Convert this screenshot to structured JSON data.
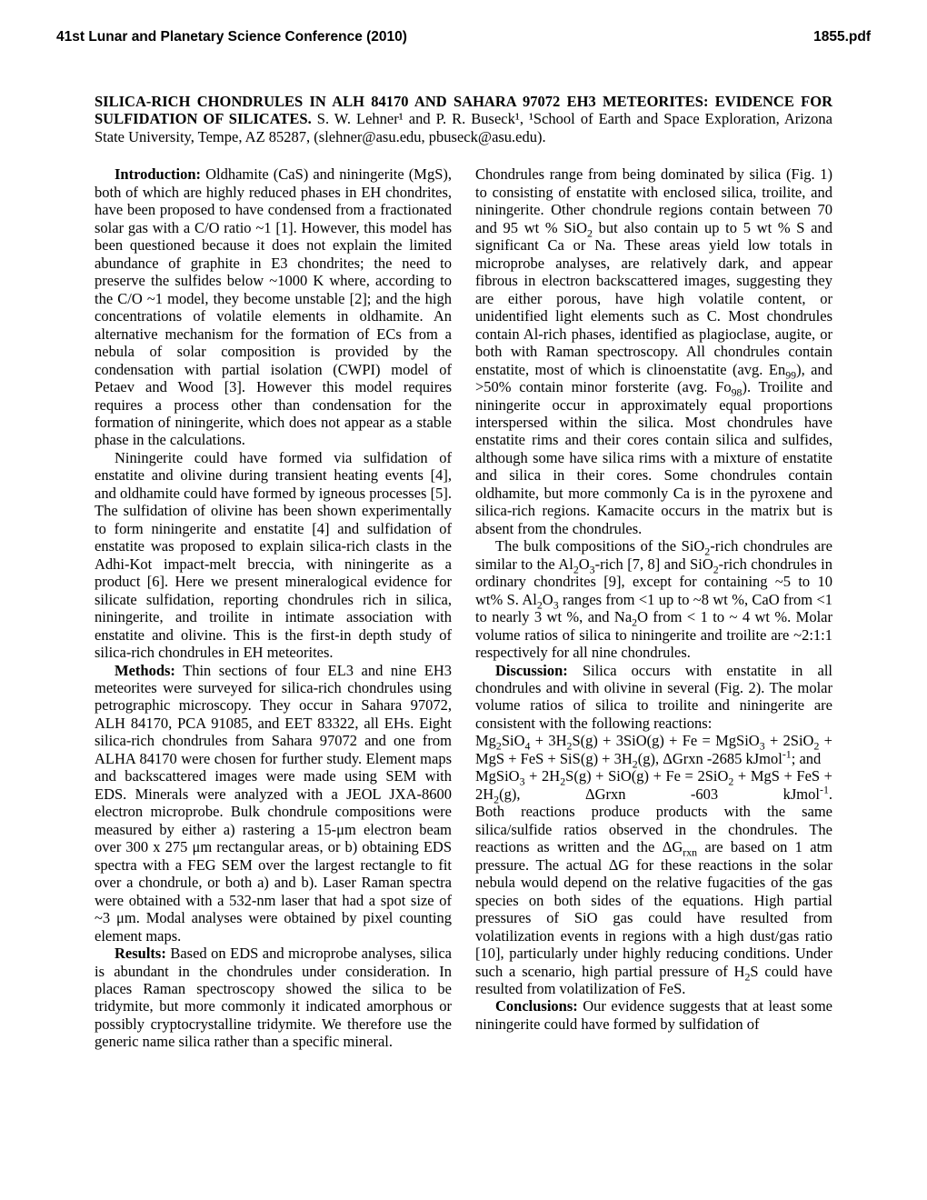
{
  "header": {
    "left": "41st Lunar and Planetary Science Conference (2010)",
    "right": "1855.pdf"
  },
  "title": {
    "main": "SILICA-RICH CHONDRULES IN ALH 84170 AND SAHARA 97072 EH3 METEORITES: EVIDENCE FOR SULFIDATION OF SILICATES.",
    "authors": "  S. W. Lehner¹ and P. R. Buseck¹, ¹School of Earth and Space Exploration, Arizona State University,  Tempe, AZ 85287, (slehner@asu.edu, pbuseck@asu.edu)."
  },
  "left": {
    "p1_lead": "Introduction:",
    "p1": "  Oldhamite (CaS) and niningerite (MgS), both of which are highly reduced phases in EH chondrites, have been proposed to have condensed from a fractionated solar gas with a C/O ratio ~1 [1]. However, this model has been questioned because it does not explain the limited abundance of graphite in E3 chondrites; the need to preserve the sulfides below ~1000 K where, according to the C/O ~1 model, they become unstable [2]; and the high concentrations of volatile elements in oldhamite. An alternative mechanism for the formation of ECs from a nebula of solar composition is provided by the condensation with partial isolation (CWPI) model of Petaev and Wood [3]. However this model requires requires a process other than condensation for the formation of niningerite, which does not appear as a stable phase in the calculations.",
    "p2": "Niningerite could have formed via sulfidation of enstatite and olivine during transient heating events [4], and oldhamite could have formed by igneous processes [5]. The sulfidation of olivine has been shown experimentally to form niningerite and enstatite [4] and sulfidation of enstatite was proposed to explain silica-rich clasts in the Adhi-Kot impact-melt breccia, with niningerite as a product [6]. Here we present mineralogical evidence for silicate sulfidation, reporting chondrules rich in silica, niningerite, and troilite in intimate association with enstatite and olivine. This is the first-in depth study of silica-rich chondrules in EH meteorites.",
    "p3_lead": "Methods:",
    "p3": "  Thin sections of four EL3 and nine EH3 meteorites were surveyed for silica-rich chondrules using petrographic microscopy. They occur in Sahara 97072, ALH 84170, PCA 91085, and EET 83322, all EHs. Eight silica-rich chondrules from Sahara 97072 and one from ALHA 84170 were chosen for further study. Element maps and backscattered images were made using SEM with EDS. Minerals were analyzed with a JEOL JXA-8600 electron microprobe. Bulk chondrule compositions were measured by either a) rastering a 15-μm electron beam over 300 x 275 μm rectangular areas, or b) obtaining EDS spectra with a FEG SEM over the largest rectangle to fit over a chondrule, or both a) and b). Laser Raman spectra were obtained with a 532-nm laser that had a spot size of ~3 μm. Modal analyses were obtained by pixel counting element maps.",
    "p4_lead": "Results:",
    "p4": "  Based on EDS and microprobe analyses, silica is abundant in the chondrules under consideration. In places Raman spectroscopy showed the silica to be tridymite, but more commonly it indicated amorphous or possibly cryptocrystalline tridymite. We therefore use the generic name silica rather than a specific mineral."
  },
  "right": {
    "p1a": "Chondrules range from being dominated by silica (Fig. 1) to consisting of enstatite with enclosed silica, troilite, and niningerite. Other chondrule regions contain between 70 and 95 wt % SiO",
    "p1b": " but also contain up to 5 wt % S and significant Ca or Na. These areas yield low totals in microprobe analyses, are relatively dark, and appear fibrous in electron backscattered images, suggesting they are either porous, have high volatile content, or unidentified light elements such as C. Most chondrules contain Al-rich phases, identified as plagioclase, augite, or both with Raman spectroscopy. All chondrules contain enstatite, most of which is clinoenstatite (avg. En",
    "p1c": "), and >50% contain minor forsterite (avg. Fo",
    "p1d": "). Troilite and niningerite occur in approximately equal proportions interspersed within the silica. Most chondrules have enstatite rims and their cores contain silica and sulfides, although some have silica rims with a mixture of enstatite and silica in their cores. Some chondrules contain oldhamite, but more commonly Ca is in the pyroxene and silica-rich regions. Kamacite occurs in the matrix but is absent from the chondrules.",
    "p2a": "The bulk compositions of the SiO",
    "p2b": "-rich chondrules are similar to the Al",
    "p2c": "O",
    "p2d": "-rich [7, 8] and SiO",
    "p2e": "-rich chondrules in ordinary chondrites [9], except for containing ~5 to 10 wt% S. Al",
    "p2f": "O",
    "p2g": " ranges from <1 up to ~8 wt %, CaO from <1 to nearly 3 wt %, and Na",
    "p2h": "O from < 1 to ~ 4 wt %.  Molar volume ratios of silica to niningerite and troilite are ~2:1:1 respectively for all nine chondrules.",
    "p3_lead": "Discussion:",
    "p3": "  Silica occurs with enstatite in all chondrules and with olivine in several (Fig. 2). The molar volume ratios of silica to troilite and niningerite are consistent with the following reactions:",
    "eq1a": "Mg",
    "eq1b": "SiO",
    "eq1c": " + 3H",
    "eq1d": "S(g) + 3SiO(g) + Fe = MgSiO",
    "eq1e": " + 2SiO",
    "eq1f": " + MgS + FeS + SiS(g) + 3H",
    "eq1g": "(g), ΔGrxn  -2685 kJmol",
    "eq1h": "; and",
    "eq2a": "MgSiO",
    "eq2b": " + 2H",
    "eq2c": "S(g) + SiO(g) + Fe = 2SiO",
    "eq2d": " + MgS + FeS + 2H",
    "eq2e": "(g),",
    "eq2f": "ΔGrxn  -603 kJmol",
    "eq2g": ".",
    "p4a": "Both reactions produce products with the same silica/sulfide ratios observed in the chondrules. The reactions as written and the ΔG",
    "p4b": " are based on 1 atm pressure. The actual ΔG for these reactions in the solar nebula would depend on the relative fugacities of the gas species on both sides of the equations. High partial pressures of SiO gas could have resulted from volatilization events in regions with a high dust/gas ratio [10], particularly under highly reducing conditions. Under such a scenario, high partial pressure of H",
    "p4c": "S could have resulted from volatilization of FeS.",
    "p5_lead": "Conclusions:",
    "p5": "  Our evidence suggests that at least some niningerite could have formed by sulfidation of"
  }
}
